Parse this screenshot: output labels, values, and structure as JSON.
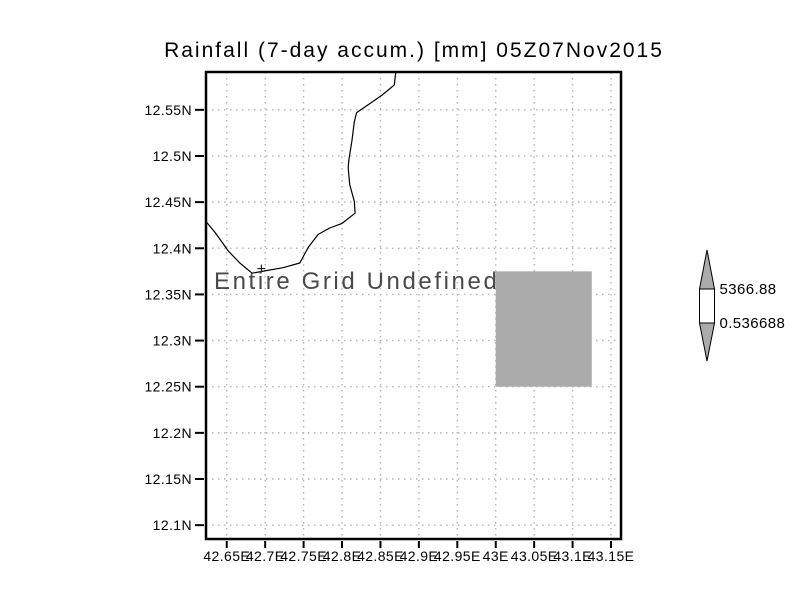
{
  "chart_data": {
    "type": "map",
    "title": "Rainfall (7-day accum.) [mm] 05Z07Nov2015",
    "message": "Entire Grid Undefined",
    "grid": {
      "style": "dotted",
      "color": "#b4b4b4"
    },
    "x_axis": {
      "range": [
        42.623,
        43.163
      ],
      "ticks": [
        {
          "value": 42.65,
          "label": "42.65E"
        },
        {
          "value": 42.7,
          "label": "42.7E"
        },
        {
          "value": 42.75,
          "label": "42.75E"
        },
        {
          "value": 42.8,
          "label": "42.8E"
        },
        {
          "value": 42.85,
          "label": "42.85E"
        },
        {
          "value": 42.9,
          "label": "42.9E"
        },
        {
          "value": 42.95,
          "label": "42.95E"
        },
        {
          "value": 43.0,
          "label": "43E"
        },
        {
          "value": 43.05,
          "label": "43.05E"
        },
        {
          "value": 43.1,
          "label": "43.1E"
        },
        {
          "value": 43.15,
          "label": "43.15E"
        }
      ]
    },
    "y_axis": {
      "range": [
        12.085,
        12.591
      ],
      "ticks": [
        {
          "value": 12.55,
          "label": "12.55N"
        },
        {
          "value": 12.5,
          "label": "12.5N"
        },
        {
          "value": 12.45,
          "label": "12.45N"
        },
        {
          "value": 12.4,
          "label": "12.4N"
        },
        {
          "value": 12.35,
          "label": "12.35N"
        },
        {
          "value": 12.3,
          "label": "12.3N"
        },
        {
          "value": 12.25,
          "label": "12.25N"
        },
        {
          "value": 12.2,
          "label": "12.2N"
        },
        {
          "value": 12.15,
          "label": "12.15N"
        },
        {
          "value": 12.1,
          "label": "12.1N"
        }
      ]
    },
    "undefined_cell": {
      "lon_min": 43.0,
      "lon_max": 43.125,
      "lat_min": 12.25,
      "lat_max": 12.375,
      "fill": "#ababab"
    },
    "coastline": [
      [
        42.87,
        12.591
      ],
      [
        42.868,
        12.577
      ],
      [
        42.861,
        12.572
      ],
      [
        42.852,
        12.566
      ],
      [
        42.835,
        12.556
      ],
      [
        42.819,
        12.547
      ],
      [
        42.816,
        12.537
      ],
      [
        42.813,
        12.517
      ],
      [
        42.809,
        12.496
      ],
      [
        42.808,
        12.487
      ],
      [
        42.81,
        12.469
      ],
      [
        42.816,
        12.451
      ],
      [
        42.817,
        12.438
      ],
      [
        42.8,
        12.427
      ],
      [
        42.784,
        12.422
      ],
      [
        42.769,
        12.415
      ],
      [
        42.756,
        12.401
      ],
      [
        42.745,
        12.384
      ],
      [
        42.723,
        12.379
      ],
      [
        42.696,
        12.375
      ],
      [
        42.683,
        12.373
      ],
      [
        42.667,
        12.384
      ],
      [
        42.652,
        12.397
      ],
      [
        42.635,
        12.417
      ],
      [
        42.623,
        12.429
      ]
    ],
    "coast_marker": {
      "lon": 42.695,
      "lat": 12.378
    },
    "colorbar": {
      "top_label": "5366.88",
      "bottom_label": "0.536688",
      "arrow_fill": "#ababab",
      "box_fill": "#ffffff"
    }
  },
  "colors": {
    "border": "#000000",
    "coast": "#000000",
    "grid": "#b4b4b4",
    "message": "#4a4a4a",
    "text": "#000000"
  }
}
